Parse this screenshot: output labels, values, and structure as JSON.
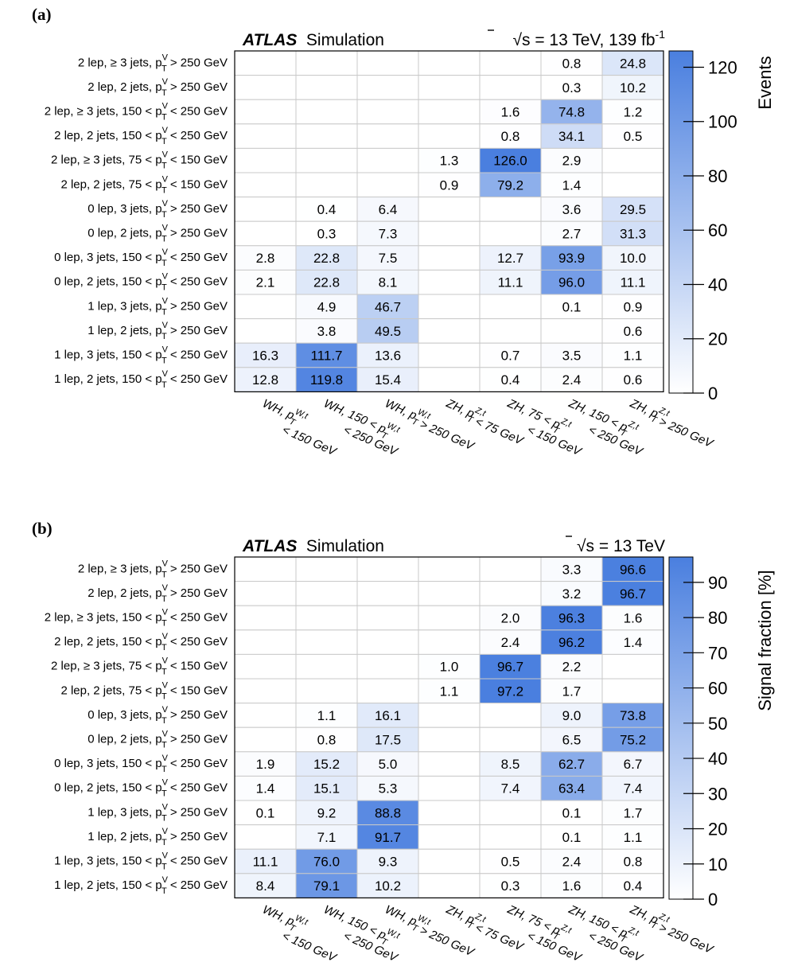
{
  "chart_data": [
    {
      "type": "heatmap",
      "panel_label": "(a)",
      "experiment": "ATLAS",
      "experiment_note": "Simulation",
      "energy_label": "√s = 13 TeV, 139 fb",
      "energy_sup": "-1",
      "zlabel": "Events",
      "zlim": [
        0,
        126
      ],
      "zticks": [
        0,
        20,
        40,
        60,
        80,
        100,
        120
      ],
      "values": [
        [
          null,
          null,
          null,
          null,
          null,
          0.8,
          24.8
        ],
        [
          null,
          null,
          null,
          null,
          null,
          0.3,
          10.2
        ],
        [
          null,
          null,
          null,
          null,
          1.6,
          74.8,
          1.2
        ],
        [
          null,
          null,
          null,
          null,
          0.8,
          34.1,
          0.5
        ],
        [
          null,
          null,
          null,
          1.3,
          126.0,
          2.9,
          null
        ],
        [
          null,
          null,
          null,
          0.9,
          79.2,
          1.4,
          null
        ],
        [
          null,
          0.4,
          6.4,
          null,
          null,
          3.6,
          29.5
        ],
        [
          null,
          0.3,
          7.3,
          null,
          null,
          2.7,
          31.3
        ],
        [
          2.8,
          22.8,
          7.5,
          null,
          12.7,
          93.9,
          10.0
        ],
        [
          2.1,
          22.8,
          8.1,
          null,
          11.1,
          96.0,
          11.1
        ],
        [
          null,
          4.9,
          46.7,
          null,
          null,
          0.1,
          0.9
        ],
        [
          null,
          3.8,
          49.5,
          null,
          null,
          null,
          0.6
        ],
        [
          16.3,
          111.7,
          13.6,
          null,
          0.7,
          3.5,
          1.1
        ],
        [
          12.8,
          119.8,
          15.4,
          null,
          0.4,
          2.4,
          0.6
        ]
      ]
    },
    {
      "type": "heatmap",
      "panel_label": "(b)",
      "experiment": "ATLAS",
      "experiment_note": "Simulation",
      "energy_label": "√s = 13 TeV",
      "energy_sup": "",
      "zlabel": "Signal fraction [%]",
      "zlim": [
        0,
        97.2
      ],
      "zticks": [
        0,
        10,
        20,
        30,
        40,
        50,
        60,
        70,
        80,
        90
      ],
      "values": [
        [
          null,
          null,
          null,
          null,
          null,
          3.3,
          96.6
        ],
        [
          null,
          null,
          null,
          null,
          null,
          3.2,
          96.7
        ],
        [
          null,
          null,
          null,
          null,
          2.0,
          96.3,
          1.6
        ],
        [
          null,
          null,
          null,
          null,
          2.4,
          96.2,
          1.4
        ],
        [
          null,
          null,
          null,
          1.0,
          96.7,
          2.2,
          null
        ],
        [
          null,
          null,
          null,
          1.1,
          97.2,
          1.7,
          null
        ],
        [
          null,
          1.1,
          16.1,
          null,
          null,
          9.0,
          73.8
        ],
        [
          null,
          0.8,
          17.5,
          null,
          null,
          6.5,
          75.2
        ],
        [
          1.9,
          15.2,
          5.0,
          null,
          8.5,
          62.7,
          6.7
        ],
        [
          1.4,
          15.1,
          5.3,
          null,
          7.4,
          63.4,
          7.4
        ],
        [
          0.1,
          9.2,
          88.8,
          null,
          null,
          0.1,
          1.7
        ],
        [
          null,
          7.1,
          91.7,
          null,
          null,
          0.1,
          1.1
        ],
        [
          11.1,
          76.0,
          9.3,
          null,
          0.5,
          2.4,
          0.8
        ],
        [
          8.4,
          79.1,
          10.2,
          null,
          0.3,
          1.6,
          0.4
        ]
      ]
    }
  ],
  "row_labels": [
    {
      "pre": "2 lep, ≥ 3 jets, ",
      "post": " > 250 GeV"
    },
    {
      "pre": "2 lep, 2 jets, ",
      "post": " > 250 GeV"
    },
    {
      "pre": "2 lep, ≥ 3 jets, 150 < ",
      "post": " < 250 GeV"
    },
    {
      "pre": "2 lep, 2 jets, 150 < ",
      "post": " < 250 GeV"
    },
    {
      "pre": "2 lep, ≥ 3 jets, 75 < ",
      "post": " < 150 GeV"
    },
    {
      "pre": "2 lep, 2 jets, 75 < ",
      "post": " < 150 GeV"
    },
    {
      "pre": "0 lep, 3 jets, ",
      "post": " > 250 GeV"
    },
    {
      "pre": "0 lep, 2 jets, ",
      "post": " > 250 GeV"
    },
    {
      "pre": "0 lep, 3 jets, 150 < ",
      "post": " < 250 GeV"
    },
    {
      "pre": "0 lep, 2 jets, 150 < ",
      "post": " < 250 GeV"
    },
    {
      "pre": "1 lep, 3 jets, ",
      "post": " > 250 GeV"
    },
    {
      "pre": "1 lep, 2 jets, ",
      "post": " > 250 GeV"
    },
    {
      "pre": "1 lep, 3 jets, 150 < ",
      "post": " < 250 GeV"
    },
    {
      "pre": "1 lep, 2 jets, 150 < ",
      "post": " < 250 GeV"
    }
  ],
  "row_pt_symbol": {
    "base": "p",
    "sub": "T",
    "sup": "V"
  },
  "column_labels": [
    {
      "line1": [
        {
          "t": "WH, "
        },
        {
          "t": "p",
          "sub": "T",
          "sup": "W,t"
        }
      ],
      "line2": "< 150 GeV"
    },
    {
      "line1": [
        {
          "t": "WH, 150 < "
        },
        {
          "t": "p",
          "sub": "T",
          "sup": "W,t"
        }
      ],
      "line2": "< 250 GeV"
    },
    {
      "line1": [
        {
          "t": "WH, "
        },
        {
          "t": "p",
          "sub": "T",
          "sup": "W,t"
        },
        {
          "t": " > 250 GeV"
        }
      ],
      "line2": ""
    },
    {
      "line1": [
        {
          "t": "ZH, "
        },
        {
          "t": "p",
          "sub": "T",
          "sup": "Z,t"
        },
        {
          "t": " < 75 GeV"
        }
      ],
      "line2": ""
    },
    {
      "line1": [
        {
          "t": "ZH, 75 < "
        },
        {
          "t": "p",
          "sub": "T",
          "sup": "Z,t"
        }
      ],
      "line2": "< 150 GeV"
    },
    {
      "line1": [
        {
          "t": "ZH, 150 < "
        },
        {
          "t": "p",
          "sub": "T",
          "sup": "Z,t"
        }
      ],
      "line2": "< 250 GeV"
    },
    {
      "line1": [
        {
          "t": "ZH, "
        },
        {
          "t": "p",
          "sub": "T",
          "sup": "Z,t"
        },
        {
          "t": " > 250 GeV"
        }
      ],
      "line2": ""
    }
  ],
  "colors": {
    "high": "#4a7fdf",
    "low": "#ffffff",
    "grid": "#c9c9c9",
    "frame": "#000000"
  }
}
